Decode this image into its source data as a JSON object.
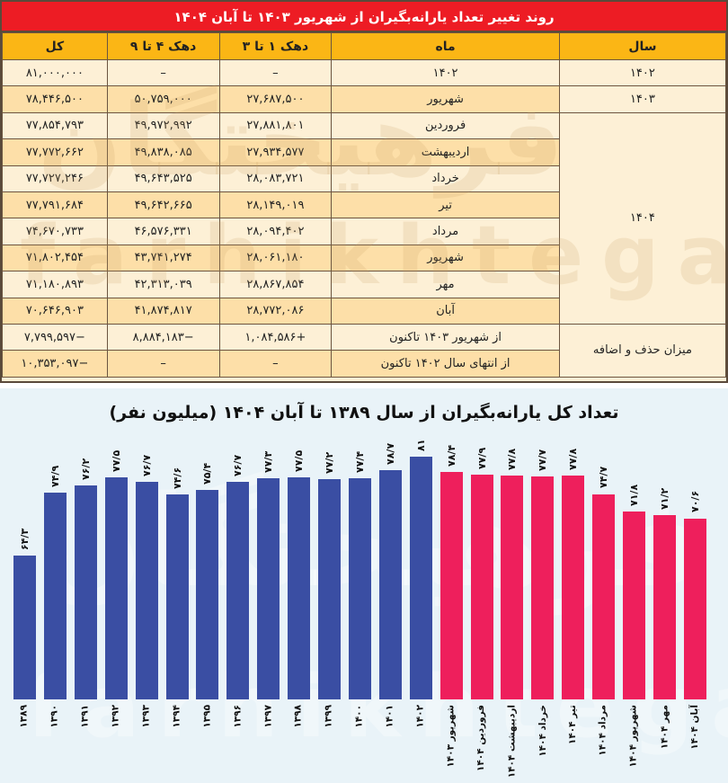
{
  "table": {
    "title": "روند تغییر تعداد یارانه‌بگیران از شهریور ۱۴۰۳ تا آبان ۱۴۰۴",
    "headers": [
      "سال",
      "ماه",
      "دهک ۱ تا ۳",
      "دهک ۴ تا ۹",
      "کل"
    ],
    "rows": [
      {
        "year": "۱۴۰۲",
        "month": "۱۴۰۲",
        "d1_3": "–",
        "d4_9": "–",
        "total": "۸۱,۰۰۰,۰۰۰"
      },
      {
        "year": "۱۴۰۳",
        "month": "شهریور",
        "d1_3": "۲۷,۶۸۷,۵۰۰",
        "d4_9": "۵۰,۷۵۹,۰۰۰",
        "total": "۷۸,۴۴۶,۵۰۰"
      },
      {
        "year": "۱۴۰۴",
        "month": "فروردین",
        "d1_3": "۲۷,۸۸۱,۸۰۱",
        "d4_9": "۴۹,۹۷۲,۹۹۲",
        "total": "۷۷,۸۵۴,۷۹۳"
      },
      {
        "year": "",
        "month": "اردیبهشت",
        "d1_3": "۲۷,۹۳۴,۵۷۷",
        "d4_9": "۴۹,۸۳۸,۰۸۵",
        "total": "۷۷,۷۷۲,۶۶۲"
      },
      {
        "year": "",
        "month": "خرداد",
        "d1_3": "۲۸,۰۸۳,۷۲۱",
        "d4_9": "۴۹,۶۴۳,۵۲۵",
        "total": "۷۷,۷۲۷,۲۴۶"
      },
      {
        "year": "",
        "month": "تیر",
        "d1_3": "۲۸,۱۴۹,۰۱۹",
        "d4_9": "۴۹,۶۴۲,۶۶۵",
        "total": "۷۷,۷۹۱,۶۸۴"
      },
      {
        "year": "",
        "month": "مرداد",
        "d1_3": "۲۸,۰۹۴,۴۰۲",
        "d4_9": "۴۶,۵۷۶,۳۳۱",
        "total": "۷۴,۶۷۰,۷۳۳"
      },
      {
        "year": "",
        "month": "شهریور",
        "d1_3": "۲۸,۰۶۱,۱۸۰",
        "d4_9": "۴۳,۷۴۱,۲۷۴",
        "total": "۷۱,۸۰۲,۴۵۴"
      },
      {
        "year": "",
        "month": "مهر",
        "d1_3": "۲۸,۸۶۷,۸۵۴",
        "d4_9": "۴۲,۳۱۳,۰۳۹",
        "total": "۷۱,۱۸۰,۸۹۳"
      },
      {
        "year": "",
        "month": "آبان",
        "d1_3": "۲۸,۷۷۲,۰۸۶",
        "d4_9": "۴۱,۸۷۴,۸۱۷",
        "total": "۷۰,۶۴۶,۹۰۳"
      },
      {
        "year": "میزان حذف و اضافه",
        "month": "از شهریور ۱۴۰۳ تاکنون",
        "d1_3": "+۱,۰۸۴,۵۸۶",
        "d4_9": "−۸,۸۸۴,۱۸۳",
        "total": "−۷,۷۹۹,۵۹۷"
      },
      {
        "year": "",
        "month": "از انتهای سال ۱۴۰۲ تاکنون",
        "d1_3": "–",
        "d4_9": "–",
        "total": "−۱۰,۳۵۳,۰۹۷"
      }
    ]
  },
  "watermark": {
    "text_fa": "فرهیختگان",
    "text_en": "farhikhtegan"
  },
  "chart": {
    "title": "تعداد کل یارانه‌بگیران از سال ۱۳۸۹ تا آبان ۱۴۰۴ (میلیون نفر)",
    "colors": {
      "yearly": "#3a4ea3",
      "monthly": "#ee1f5c",
      "background": "#e9f3f8"
    }
  },
  "chart_data": {
    "type": "bar",
    "title": "تعداد کل یارانه‌بگیران از سال ۱۳۸۹ تا آبان ۱۴۰۴ (میلیون نفر)",
    "xlabel": "",
    "ylabel": "میلیون نفر",
    "ylim": [
      0,
      85
    ],
    "grid": false,
    "legend": null,
    "categories": [
      "۱۳۸۹",
      "۱۳۹۰",
      "۱۳۹۱",
      "۱۳۹۲",
      "۱۳۹۳",
      "۱۳۹۴",
      "۱۳۹۵",
      "۱۳۹۶",
      "۱۳۹۷",
      "۱۳۹۸",
      "۱۳۹۹",
      "۱۴۰۰",
      "۱۴۰۱",
      "۱۴۰۲",
      "شهریور ۱۴۰۳",
      "فروردین ۱۴۰۴",
      "اردیبهشت ۱۴۰۴",
      "خرداد ۱۴۰۴",
      "تیر ۱۴۰۴",
      "مرداد ۱۴۰۴",
      "شهریور ۱۴۰۴",
      "مهر ۱۴۰۴",
      "آبان ۱۴۰۴"
    ],
    "values": [
      64.3,
      74.9,
      76.2,
      77.5,
      76.7,
      74.6,
      75.4,
      76.7,
      77.3,
      77.5,
      77.2,
      77.4,
      78.7,
      81,
      78.4,
      77.9,
      77.8,
      77.7,
      77.8,
      74.7,
      71.8,
      71.2,
      70.6
    ],
    "value_labels": [
      "۶۴/۳",
      "۷۴/۹",
      "۷۶/۲",
      "۷۷/۵",
      "۷۶/۷",
      "۷۴/۶",
      "۷۵/۴",
      "۷۶/۷",
      "۷۷/۳",
      "۷۷/۵",
      "۷۷/۲",
      "۷۷/۴",
      "۷۸/۷",
      "۸۱",
      "۷۸/۴",
      "۷۷/۹",
      "۷۷/۸",
      "۷۷/۷",
      "۷۷/۸",
      "۷۴/۷",
      "۷۱/۸",
      "۷۱/۲",
      "۷۰/۶"
    ],
    "series_color_split": {
      "yearly_count": 14,
      "yearly_color": "#3a4ea3",
      "monthly_color": "#ee1f5c"
    }
  }
}
